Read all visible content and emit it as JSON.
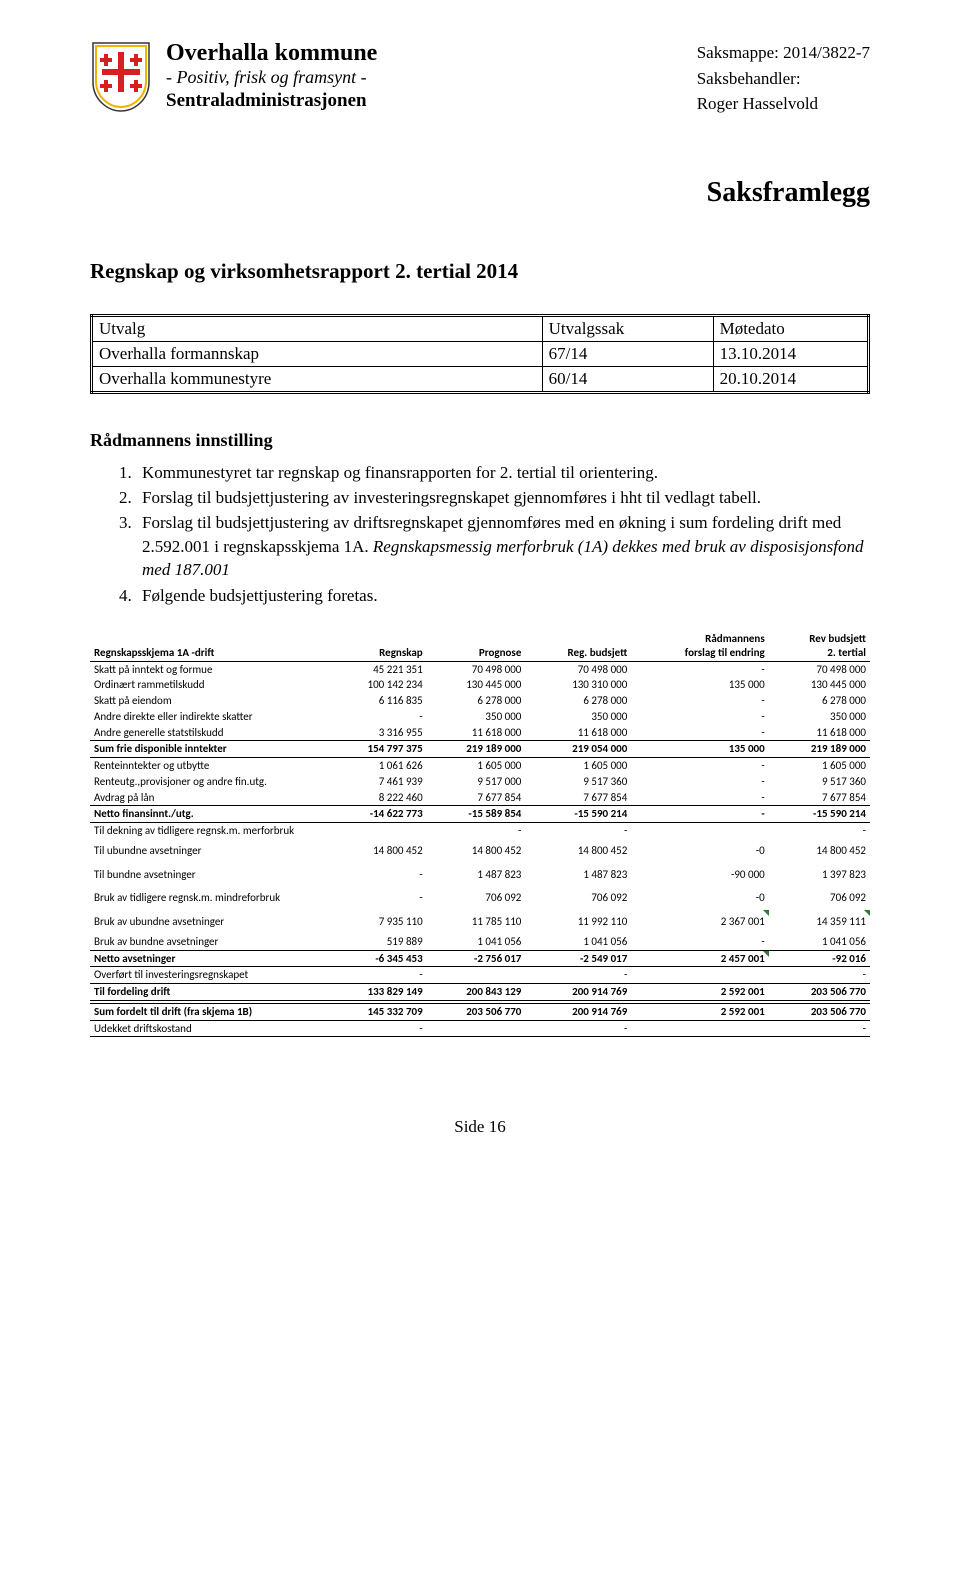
{
  "header": {
    "org_title": "Overhalla kommune",
    "org_slogan": "- Positiv, frisk og framsynt -",
    "org_dept": "Sentraladministrasjonen",
    "saksmappe_label": "Saksmappe:",
    "saksmappe_value": "2014/3822-7",
    "saksbehandler_label": "Saksbehandler:",
    "saksbehandler_name": "Roger Hasselvold",
    "crest": {
      "shield_fill": "#ffffff",
      "shield_stroke_outer": "#333333",
      "shield_stroke_inner": "#f0b400",
      "cross_color": "#d62020"
    }
  },
  "title_big": "Saksframlegg",
  "section_title": "Regnskap og virksomhetsrapport 2. tertial 2014",
  "utvalg": {
    "headers": [
      "Utvalg",
      "Utvalgssak",
      "Møtedato"
    ],
    "rows": [
      [
        "Overhalla formannskap",
        "67/14",
        "13.10.2014"
      ],
      [
        "Overhalla kommunestyre",
        "60/14",
        "20.10.2014"
      ]
    ]
  },
  "innstilling": {
    "heading": "Rådmannens innstilling",
    "items": [
      "Kommunestyret tar regnskap og finansrapporten for 2. tertial til orientering.",
      "Forslag til budsjettjustering av investeringsregnskapet gjennomføres i hht til vedlagt tabell.",
      {
        "text_a": "Forslag til budsjettjustering av driftsregnskapet gjennomføres med en økning i sum fordeling drift med 2.592.001 i regnskapsskjema 1A. ",
        "text_italic": "Regnskapsmessig merforbruk (1A) dekkes med bruk av disposisjonsfond med 187.001"
      },
      "Følgende budsjettjustering foretas."
    ]
  },
  "fin": {
    "headers": {
      "c1": "Regnskapsskjema 1A -drift",
      "c2": "Regnskap",
      "c3": "Prognose",
      "c4": "Reg. budsjett",
      "c5a": "Rådmannens",
      "c5b": "forslag til endring",
      "c6a": "Rev budsjett",
      "c6b": "2. tertial"
    },
    "rows": [
      {
        "d": "Skatt på inntekt og formue",
        "v": [
          "45 221 351",
          "70 498 000",
          "70 498 000",
          "-",
          "70 498 000"
        ]
      },
      {
        "d": "Ordinært rammetilskudd",
        "v": [
          "100 142 234",
          "130 445 000",
          "130 310 000",
          "135 000",
          "130 445 000"
        ]
      },
      {
        "d": "Skatt på eiendom",
        "v": [
          "6 116 835",
          "6 278 000",
          "6 278 000",
          "-",
          "6 278 000"
        ]
      },
      {
        "d": "Andre direkte eller indirekte skatter",
        "v": [
          "-",
          "350 000",
          "350 000",
          "-",
          "350 000"
        ]
      },
      {
        "d": "Andre generelle statstilskudd",
        "v": [
          "3 316 955",
          "11 618 000",
          "11 618 000",
          "-",
          "11 618 000"
        ],
        "bb": true
      },
      {
        "d": "Sum frie disponible inntekter",
        "v": [
          "154 797 375",
          "219 189 000",
          "219 054 000",
          "135 000",
          "219 189 000"
        ],
        "bold": true,
        "bb": true
      },
      {
        "d": "Renteinntekter og utbytte",
        "v": [
          "1 061 626",
          "1 605 000",
          "1 605 000",
          "-",
          "1 605 000"
        ]
      },
      {
        "d": "Renteutg.,provisjoner og andre fin.utg.",
        "v": [
          "7 461 939",
          "9 517 000",
          "9 517 360",
          "-",
          "9 517 360"
        ]
      },
      {
        "d": "Avdrag på lån",
        "v": [
          "8 222 460",
          "7 677 854",
          "7 677 854",
          "-",
          "7 677 854"
        ],
        "bb": true
      },
      {
        "d": "Netto finansinnt./utg.",
        "v": [
          "-14 622 773",
          "-15 589 854",
          "-15 590 214",
          "-",
          "-15 590 214"
        ],
        "bold": true,
        "bb": true
      },
      {
        "d": "Til dekning av tidligere regnsk.m. merforbruk",
        "v": [
          "",
          "-",
          "-",
          "",
          "-"
        ]
      },
      {
        "d": "Til ubundne avsetninger",
        "v": [
          "14 800 452",
          "14 800 452",
          "14 800 452",
          "-0",
          "14 800 452"
        ],
        "tall": true
      },
      {
        "d": "Til bundne avsetninger",
        "v": [
          "-",
          "1 487 823",
          "1 487 823",
          "-90 000",
          "1 397 823"
        ],
        "tall": true
      },
      {
        "d": "Bruk av tidligere regnsk.m. mindreforbruk",
        "v": [
          "-",
          "706 092",
          "706 092",
          "-0",
          "706 092"
        ],
        "tall": true
      },
      {
        "d": "Bruk av ubundne avsetninger",
        "v": [
          "7 935 110",
          "11 785 110",
          "11 992 110",
          "2 367 001",
          "14 359 111"
        ],
        "tall": true,
        "mark": [
          3,
          4
        ]
      },
      {
        "d": "Bruk av bundne avsetninger",
        "v": [
          "519 889",
          "1 041 056",
          "1 041 056",
          "-",
          "1 041 056"
        ],
        "bb": true
      },
      {
        "d": "Netto avsetninger",
        "v": [
          "-6 345 453",
          "-2 756 017",
          "-2 549 017",
          "2 457 001",
          "-92 016"
        ],
        "bold": true,
        "bb": true,
        "mark": [
          3
        ]
      },
      {
        "d": "Overført til investeringsregnskapet",
        "v": [
          "-",
          "",
          "-",
          "",
          "-"
        ],
        "bb": true
      },
      {
        "d": "Til fordeling drift",
        "v": [
          "133 829 149",
          "200 843 129",
          "200 914 769",
          "2 592 001",
          "203 506 770"
        ],
        "bold": true,
        "bb": true
      },
      {
        "d": "",
        "v": [
          "",
          "",
          "",
          "",
          ""
        ]
      },
      {
        "d": "Sum fordelt til drift (fra skjema 1B)",
        "v": [
          "145 332 709",
          "203 506 770",
          "200 914 769",
          "2 592 001",
          "203 506 770"
        ],
        "bold": true,
        "bt": true,
        "bb": true
      },
      {
        "d": "Udekket driftskostand",
        "v": [
          "-",
          "",
          "-",
          "",
          "-"
        ],
        "bb": true
      }
    ]
  },
  "footer": "Side 16"
}
